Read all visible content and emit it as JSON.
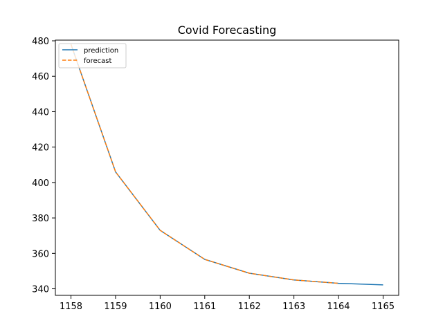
{
  "chart_data": {
    "type": "line",
    "title": "Covid Forecasting",
    "xlabel": "",
    "ylabel": "",
    "x": [
      1158,
      1159,
      1160,
      1161,
      1162,
      1163,
      1164,
      1165
    ],
    "xticks": [
      "1158",
      "1159",
      "1160",
      "1161",
      "1162",
      "1163",
      "1164",
      "1165"
    ],
    "yticks": [
      "340",
      "360",
      "380",
      "400",
      "420",
      "440",
      "460",
      "480"
    ],
    "xlim": [
      1157.65,
      1165.35
    ],
    "ylim": [
      336.3,
      480.4
    ],
    "grid": false,
    "legend_position": "top-left",
    "series": [
      {
        "name": "prediction",
        "color": "#1f77b4",
        "style": "solid",
        "x": [
          1158,
          1159,
          1160,
          1161,
          1162,
          1163,
          1164,
          1165
        ],
        "values": [
          478,
          406,
          373,
          356.6,
          348.8,
          345,
          343.1,
          342.2
        ]
      },
      {
        "name": "forecast",
        "color": "#ff7f0e",
        "style": "dashed",
        "x": [
          1158,
          1159,
          1160,
          1161,
          1162,
          1163,
          1164
        ],
        "values": [
          478,
          406,
          373,
          356.6,
          348.8,
          345,
          343.1
        ]
      }
    ]
  }
}
